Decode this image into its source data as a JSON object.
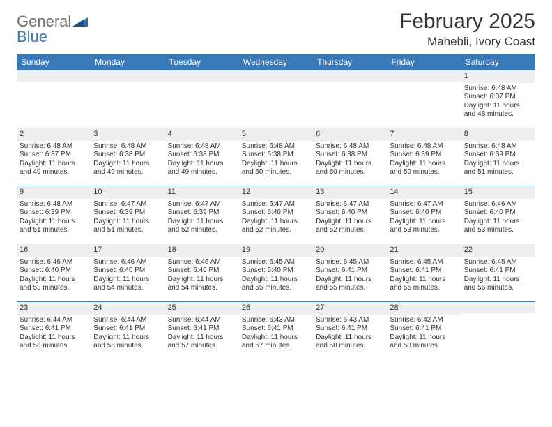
{
  "logo": {
    "word1": "General",
    "word2": "Blue"
  },
  "title": "February 2025",
  "location": "Mahebli, Ivory Coast",
  "colors": {
    "header_bg": "#3a79b7",
    "header_text": "#ffffff",
    "strip_bg": "#efefef",
    "row_border": "#4a7fb0",
    "logo_gray": "#6f6f6f",
    "logo_blue": "#3a79b7",
    "text": "#333333",
    "background": "#ffffff"
  },
  "weekdays": [
    "Sunday",
    "Monday",
    "Tuesday",
    "Wednesday",
    "Thursday",
    "Friday",
    "Saturday"
  ],
  "weeks": [
    [
      {
        "empty": true
      },
      {
        "empty": true
      },
      {
        "empty": true
      },
      {
        "empty": true
      },
      {
        "empty": true
      },
      {
        "empty": true
      },
      {
        "n": "1",
        "sunrise": "Sunrise: 6:48 AM",
        "sunset": "Sunset: 6:37 PM",
        "daylight": "Daylight: 11 hours and 48 minutes."
      }
    ],
    [
      {
        "n": "2",
        "sunrise": "Sunrise: 6:48 AM",
        "sunset": "Sunset: 6:37 PM",
        "daylight": "Daylight: 11 hours and 49 minutes."
      },
      {
        "n": "3",
        "sunrise": "Sunrise: 6:48 AM",
        "sunset": "Sunset: 6:38 PM",
        "daylight": "Daylight: 11 hours and 49 minutes."
      },
      {
        "n": "4",
        "sunrise": "Sunrise: 6:48 AM",
        "sunset": "Sunset: 6:38 PM",
        "daylight": "Daylight: 11 hours and 49 minutes."
      },
      {
        "n": "5",
        "sunrise": "Sunrise: 6:48 AM",
        "sunset": "Sunset: 6:38 PM",
        "daylight": "Daylight: 11 hours and 50 minutes."
      },
      {
        "n": "6",
        "sunrise": "Sunrise: 6:48 AM",
        "sunset": "Sunset: 6:38 PM",
        "daylight": "Daylight: 11 hours and 50 minutes."
      },
      {
        "n": "7",
        "sunrise": "Sunrise: 6:48 AM",
        "sunset": "Sunset: 6:39 PM",
        "daylight": "Daylight: 11 hours and 50 minutes."
      },
      {
        "n": "8",
        "sunrise": "Sunrise: 6:48 AM",
        "sunset": "Sunset: 6:39 PM",
        "daylight": "Daylight: 11 hours and 51 minutes."
      }
    ],
    [
      {
        "n": "9",
        "sunrise": "Sunrise: 6:48 AM",
        "sunset": "Sunset: 6:39 PM",
        "daylight": "Daylight: 11 hours and 51 minutes."
      },
      {
        "n": "10",
        "sunrise": "Sunrise: 6:47 AM",
        "sunset": "Sunset: 6:39 PM",
        "daylight": "Daylight: 11 hours and 51 minutes."
      },
      {
        "n": "11",
        "sunrise": "Sunrise: 6:47 AM",
        "sunset": "Sunset: 6:39 PM",
        "daylight": "Daylight: 11 hours and 52 minutes."
      },
      {
        "n": "12",
        "sunrise": "Sunrise: 6:47 AM",
        "sunset": "Sunset: 6:40 PM",
        "daylight": "Daylight: 11 hours and 52 minutes."
      },
      {
        "n": "13",
        "sunrise": "Sunrise: 6:47 AM",
        "sunset": "Sunset: 6:40 PM",
        "daylight": "Daylight: 11 hours and 52 minutes."
      },
      {
        "n": "14",
        "sunrise": "Sunrise: 6:47 AM",
        "sunset": "Sunset: 6:40 PM",
        "daylight": "Daylight: 11 hours and 53 minutes."
      },
      {
        "n": "15",
        "sunrise": "Sunrise: 6:46 AM",
        "sunset": "Sunset: 6:40 PM",
        "daylight": "Daylight: 11 hours and 53 minutes."
      }
    ],
    [
      {
        "n": "16",
        "sunrise": "Sunrise: 6:46 AM",
        "sunset": "Sunset: 6:40 PM",
        "daylight": "Daylight: 11 hours and 53 minutes."
      },
      {
        "n": "17",
        "sunrise": "Sunrise: 6:46 AM",
        "sunset": "Sunset: 6:40 PM",
        "daylight": "Daylight: 11 hours and 54 minutes."
      },
      {
        "n": "18",
        "sunrise": "Sunrise: 6:46 AM",
        "sunset": "Sunset: 6:40 PM",
        "daylight": "Daylight: 11 hours and 54 minutes."
      },
      {
        "n": "19",
        "sunrise": "Sunrise: 6:45 AM",
        "sunset": "Sunset: 6:40 PM",
        "daylight": "Daylight: 11 hours and 55 minutes."
      },
      {
        "n": "20",
        "sunrise": "Sunrise: 6:45 AM",
        "sunset": "Sunset: 6:41 PM",
        "daylight": "Daylight: 11 hours and 55 minutes."
      },
      {
        "n": "21",
        "sunrise": "Sunrise: 6:45 AM",
        "sunset": "Sunset: 6:41 PM",
        "daylight": "Daylight: 11 hours and 55 minutes."
      },
      {
        "n": "22",
        "sunrise": "Sunrise: 6:45 AM",
        "sunset": "Sunset: 6:41 PM",
        "daylight": "Daylight: 11 hours and 56 minutes."
      }
    ],
    [
      {
        "n": "23",
        "sunrise": "Sunrise: 6:44 AM",
        "sunset": "Sunset: 6:41 PM",
        "daylight": "Daylight: 11 hours and 56 minutes."
      },
      {
        "n": "24",
        "sunrise": "Sunrise: 6:44 AM",
        "sunset": "Sunset: 6:41 PM",
        "daylight": "Daylight: 11 hours and 56 minutes."
      },
      {
        "n": "25",
        "sunrise": "Sunrise: 6:44 AM",
        "sunset": "Sunset: 6:41 PM",
        "daylight": "Daylight: 11 hours and 57 minutes."
      },
      {
        "n": "26",
        "sunrise": "Sunrise: 6:43 AM",
        "sunset": "Sunset: 6:41 PM",
        "daylight": "Daylight: 11 hours and 57 minutes."
      },
      {
        "n": "27",
        "sunrise": "Sunrise: 6:43 AM",
        "sunset": "Sunset: 6:41 PM",
        "daylight": "Daylight: 11 hours and 58 minutes."
      },
      {
        "n": "28",
        "sunrise": "Sunrise: 6:42 AM",
        "sunset": "Sunset: 6:41 PM",
        "daylight": "Daylight: 11 hours and 58 minutes."
      },
      {
        "empty": true
      }
    ]
  ]
}
